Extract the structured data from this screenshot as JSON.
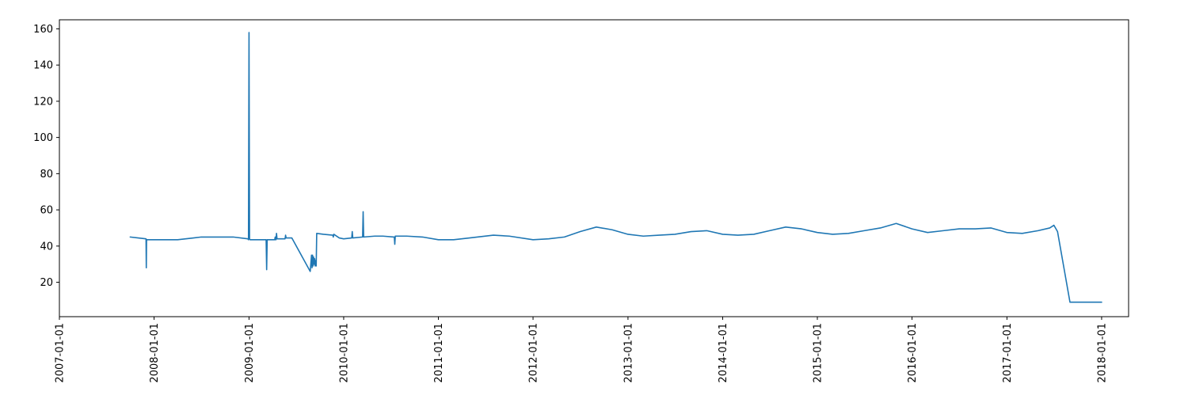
{
  "chart_data": {
    "type": "line",
    "title": "",
    "xlabel": "",
    "ylabel": "",
    "x_type": "date",
    "xlim": [
      "2007-01-01",
      "2018-04-15"
    ],
    "ylim": [
      1,
      165
    ],
    "grid": false,
    "legend": "none",
    "colors": {
      "line": "#1f77b4",
      "axis": "#000000",
      "background": "#ffffff"
    },
    "x_ticks": [
      "2007-01-01",
      "2008-01-01",
      "2009-01-01",
      "2010-01-01",
      "2011-01-01",
      "2012-01-01",
      "2013-01-01",
      "2014-01-01",
      "2015-01-01",
      "2016-01-01",
      "2017-01-01",
      "2018-01-01"
    ],
    "y_ticks": [
      20,
      40,
      60,
      80,
      100,
      120,
      140,
      160
    ],
    "series": [
      {
        "x": [
          "2007-10-01",
          "2007-11-01",
          "2007-12-01",
          "2007-12-02",
          "2007-12-03",
          "2007-12-04",
          "2008-02-01",
          "2008-04-01",
          "2008-06-01",
          "2008-07-01",
          "2008-09-01",
          "2008-11-01",
          "2008-12-28",
          "2008-12-30",
          "2009-01-01",
          "2009-01-03",
          "2009-01-05",
          "2009-03-01",
          "2009-03-08",
          "2009-03-10",
          "2009-03-12",
          "2009-04-10",
          "2009-04-12",
          "2009-04-14",
          "2009-04-15",
          "2009-04-17",
          "2009-04-19",
          "2009-05-20",
          "2009-05-22",
          "2009-05-24",
          "2009-06-15",
          "2009-08-25",
          "2009-08-30",
          "2009-09-01",
          "2009-09-03",
          "2009-09-05",
          "2009-09-07",
          "2009-09-09",
          "2009-09-11",
          "2009-09-13",
          "2009-09-15",
          "2009-09-17",
          "2009-09-19",
          "2009-10-15",
          "2009-11-20",
          "2009-11-22",
          "2009-11-24",
          "2009-12-15",
          "2010-01-01",
          "2010-02-01",
          "2010-02-03",
          "2010-02-05",
          "2010-03-15",
          "2010-03-17",
          "2010-03-19",
          "2010-05-01",
          "2010-06-01",
          "2010-07-15",
          "2010-07-17",
          "2010-07-19",
          "2010-09-01",
          "2010-11-01",
          "2011-01-01",
          "2011-03-01",
          "2011-05-01",
          "2011-08-01",
          "2011-10-01",
          "2012-01-01",
          "2012-03-01",
          "2012-05-01",
          "2012-07-01",
          "2012-09-01",
          "2012-11-01",
          "2013-01-01",
          "2013-03-01",
          "2013-05-01",
          "2013-07-01",
          "2013-09-01",
          "2013-11-01",
          "2014-01-01",
          "2014-03-01",
          "2014-05-01",
          "2014-07-01",
          "2014-09-01",
          "2014-11-01",
          "2015-01-01",
          "2015-03-01",
          "2015-05-01",
          "2015-07-01",
          "2015-09-01",
          "2015-11-01",
          "2016-01-01",
          "2016-03-01",
          "2016-05-01",
          "2016-07-01",
          "2016-09-01",
          "2016-11-01",
          "2017-01-01",
          "2017-03-01",
          "2017-05-01",
          "2017-06-15",
          "2017-07-01",
          "2017-07-15",
          "2017-09-01",
          "2018-01-01"
        ],
        "y": [
          45,
          44.5,
          44,
          28,
          43,
          43.5,
          43.5,
          43.5,
          44.5,
          45,
          45,
          45,
          44,
          43.5,
          158,
          44,
          43.5,
          43.5,
          43.5,
          27,
          43.5,
          43.5,
          45,
          43.5,
          43.5,
          47,
          44,
          44,
          46,
          44.5,
          44.5,
          26,
          35,
          28,
          35,
          29,
          34,
          30,
          33,
          29,
          32,
          29,
          47,
          46.5,
          46,
          45,
          46.5,
          44.5,
          44,
          44.5,
          48,
          44.5,
          45,
          59,
          45,
          45.5,
          45.5,
          45,
          41,
          45.5,
          45.5,
          45,
          43.5,
          43.5,
          44.5,
          46,
          45.5,
          43.5,
          44,
          45,
          48,
          50.5,
          49,
          46.5,
          45.5,
          46,
          46.5,
          48,
          48.5,
          46.5,
          46,
          46.5,
          48.5,
          50.5,
          49.5,
          47.5,
          46.5,
          47,
          48.5,
          50,
          52.5,
          49.5,
          47.5,
          48.5,
          49.5,
          49.5,
          50,
          47.5,
          47,
          48.5,
          50,
          51.5,
          48,
          9,
          9
        ]
      }
    ]
  }
}
